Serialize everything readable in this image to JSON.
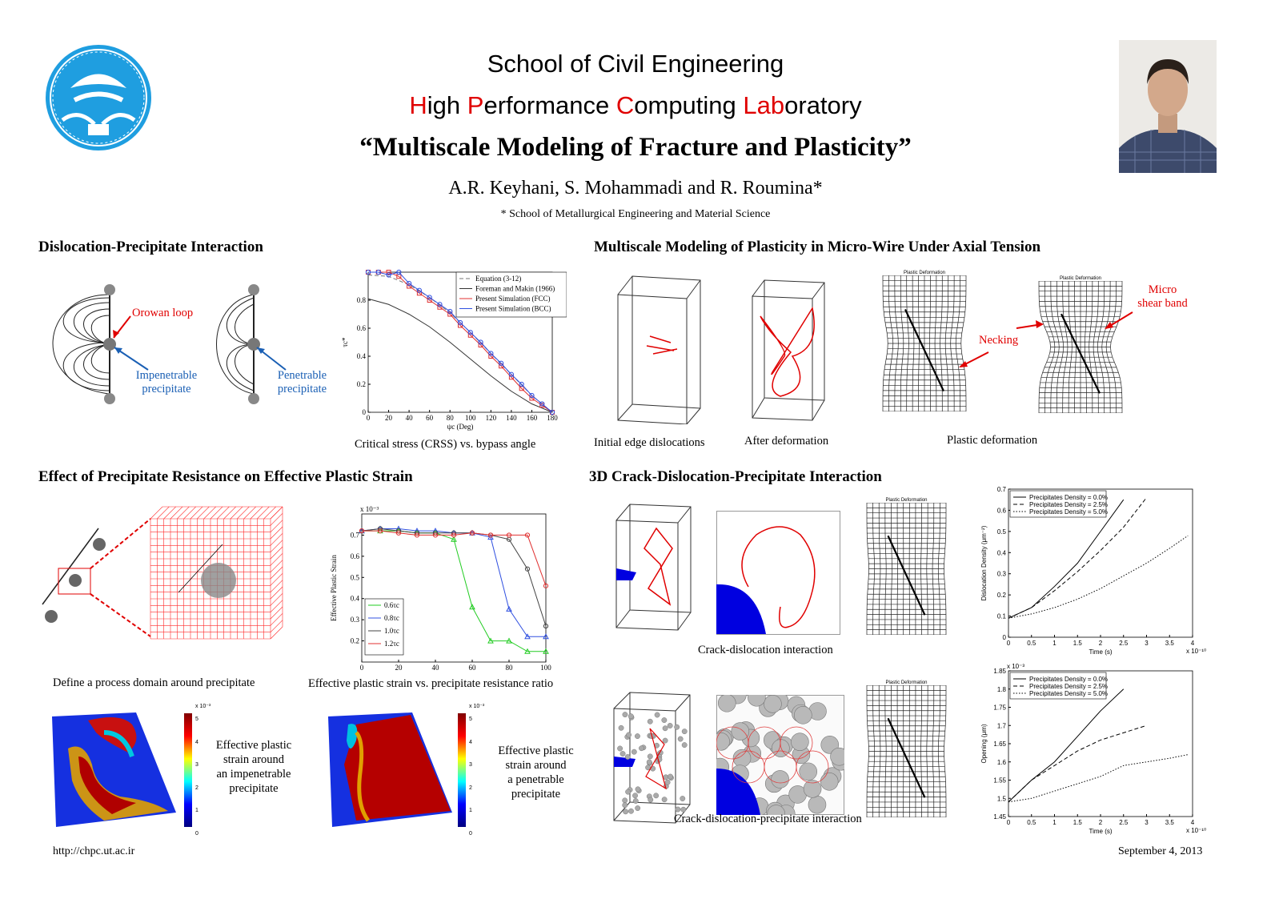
{
  "header": {
    "school": "School of Civil Engineering",
    "lab": [
      {
        "text": "H",
        "red": true
      },
      {
        "text": "igh ",
        "red": false
      },
      {
        "text": "P",
        "red": true
      },
      {
        "text": "erformance ",
        "red": false
      },
      {
        "text": "C",
        "red": true
      },
      {
        "text": "omputing ",
        "red": false
      },
      {
        "text": "Lab",
        "red": true
      },
      {
        "text": "oratory",
        "red": false
      }
    ],
    "title": "“Multiscale Modeling of Fracture and Plasticity”",
    "authors": "A.R. Keyhani, S. Mohammadi and R. Roumina*",
    "affiliation": "* School of Metallurgical Engineering and Material Science"
  },
  "sections": {
    "dislocation": {
      "title": "Dislocation-Precipitate Interaction",
      "orowan": "Orowan loop",
      "impenetrable": [
        "Impenetrable",
        "precipitate"
      ],
      "penetrable": [
        "Penetrable",
        "precipitate"
      ],
      "chart_caption": "Critical stress (CRSS) vs. bypass angle"
    },
    "microwire": {
      "title": "Multiscale Modeling of Plasticity in Micro-Wire Under Axial Tension",
      "cap_initial": "Initial edge dislocations",
      "cap_after": "After deformation",
      "cap_plastic": "Plastic deformation",
      "necking": "Necking",
      "micro_shear": [
        "Micro",
        "shear band"
      ],
      "mesh_title": "Plastic Deformation"
    },
    "effect": {
      "title": "Effect of Precipitate Resistance on Effective Plastic Strain",
      "cap_domain": "Define a process domain around precipitate",
      "cap_chart": "Effective plastic strain vs. precipitate resistance ratio",
      "map1_label": [
        "Effective plastic",
        "strain around",
        "an impenetrable",
        "precipitate"
      ],
      "map2_label": [
        "Effective plastic",
        "strain around",
        "a penetrable",
        "precipitate"
      ],
      "colorbar_ticks": [
        "5",
        "4",
        "3",
        "2",
        "1",
        "0"
      ],
      "colorbar_exp": "x 10⁻³"
    },
    "crack": {
      "title": "3D Crack-Dislocation-Precipitate Interaction",
      "cap_crack_disl": "Crack-dislocation interaction",
      "cap_crack_disl_prec": "Crack-dislocation-precipitate interaction",
      "mesh_title": "Plastic Deformation"
    }
  },
  "footer": {
    "url": "http://chpc.ut.ac.ir",
    "date": "September 4, 2013"
  },
  "colors": {
    "accent_red": "#e00000",
    "accent_blue": "#1a5fb4",
    "logo_blue": "#1f9ee0"
  },
  "chart_data": [
    {
      "type": "line",
      "title": "",
      "xlabel": "ψc (Deg)",
      "ylabel": "τc*",
      "xlim": [
        0,
        180
      ],
      "ylim": [
        0,
        1
      ],
      "xticks": [
        0,
        20,
        40,
        60,
        80,
        100,
        120,
        140,
        160,
        180
      ],
      "yticks": [
        0,
        0.2,
        0.4,
        0.6,
        0.8
      ],
      "legend": "top-right",
      "series": [
        {
          "name": "Equation (3-12)",
          "style": "dashed",
          "color": "#777777",
          "x": [
            0,
            20,
            40,
            60,
            80,
            100,
            120,
            140,
            160,
            180
          ],
          "y": [
            0.98,
            0.97,
            0.91,
            0.82,
            0.71,
            0.57,
            0.42,
            0.27,
            0.12,
            0.0
          ]
        },
        {
          "name": "Foreman and Makin (1966)",
          "style": "solid",
          "color": "#333333",
          "x": [
            0,
            20,
            40,
            60,
            80,
            100,
            120,
            140,
            160,
            180
          ],
          "y": [
            0.81,
            0.77,
            0.7,
            0.61,
            0.5,
            0.38,
            0.26,
            0.15,
            0.06,
            0.0
          ]
        },
        {
          "name": "Present Simulation (FCC)",
          "style": "marker-square",
          "color": "#e03030",
          "x": [
            0,
            10,
            20,
            30,
            40,
            50,
            60,
            70,
            80,
            90,
            100,
            110,
            120,
            130,
            140,
            150,
            160,
            170,
            180
          ],
          "y": [
            1.0,
            1.0,
            1.0,
            0.97,
            0.9,
            0.85,
            0.8,
            0.75,
            0.7,
            0.62,
            0.55,
            0.48,
            0.4,
            0.33,
            0.25,
            0.17,
            0.1,
            0.05,
            0.0
          ]
        },
        {
          "name": "Present Simulation (BCC)",
          "style": "marker-circle",
          "color": "#3050e0",
          "x": [
            0,
            10,
            20,
            30,
            40,
            50,
            60,
            70,
            80,
            90,
            100,
            110,
            120,
            130,
            140,
            150,
            160,
            170,
            180
          ],
          "y": [
            1.0,
            1.0,
            0.98,
            1.0,
            0.92,
            0.87,
            0.82,
            0.77,
            0.72,
            0.64,
            0.57,
            0.5,
            0.42,
            0.35,
            0.27,
            0.2,
            0.12,
            0.06,
            0.0
          ]
        }
      ]
    },
    {
      "type": "line",
      "title": "",
      "xlabel": "",
      "ylabel": "Effective Plastic Strain",
      "y_exponent": "x 10⁻³",
      "xlim": [
        0,
        100
      ],
      "ylim": [
        0.1,
        0.8
      ],
      "xticks": [
        0,
        20,
        40,
        60,
        80,
        100
      ],
      "yticks": [
        0.2,
        0.3,
        0.4,
        0.5,
        0.6,
        0.7
      ],
      "legend": "bottom-left",
      "series": [
        {
          "name": "0.6τc",
          "color": "#22cc22",
          "marker": "triangle",
          "x": [
            0,
            10,
            20,
            30,
            40,
            50,
            60,
            70,
            80,
            90,
            100
          ],
          "y": [
            0.72,
            0.72,
            0.72,
            0.71,
            0.71,
            0.68,
            0.36,
            0.2,
            0.2,
            0.15,
            0.15
          ]
        },
        {
          "name": "0.8τc",
          "color": "#3050e0",
          "marker": "triangle",
          "x": [
            0,
            10,
            20,
            30,
            40,
            50,
            60,
            70,
            80,
            90,
            100
          ],
          "y": [
            0.72,
            0.73,
            0.73,
            0.72,
            0.72,
            0.71,
            0.71,
            0.69,
            0.35,
            0.22,
            0.22
          ]
        },
        {
          "name": "1.0τc",
          "color": "#444444",
          "marker": "circle",
          "x": [
            0,
            10,
            20,
            30,
            40,
            50,
            60,
            70,
            80,
            90,
            100
          ],
          "y": [
            0.72,
            0.73,
            0.72,
            0.71,
            0.71,
            0.71,
            0.71,
            0.7,
            0.68,
            0.54,
            0.27
          ]
        },
        {
          "name": "1.2τc",
          "color": "#e03030",
          "marker": "circle",
          "x": [
            0,
            10,
            20,
            30,
            40,
            50,
            60,
            70,
            80,
            90,
            100
          ],
          "y": [
            0.72,
            0.72,
            0.71,
            0.7,
            0.7,
            0.7,
            0.71,
            0.7,
            0.7,
            0.7,
            0.46
          ]
        }
      ]
    },
    {
      "type": "line",
      "title": "",
      "xlabel": "Time (s)",
      "ylabel": "Dislocation Density (μm⁻²)",
      "x_exponent": "x 10⁻¹⁰",
      "xlim": [
        0,
        4
      ],
      "ylim": [
        0,
        0.7
      ],
      "xticks": [
        0,
        0.5,
        1,
        1.5,
        2,
        2.5,
        3,
        3.5,
        4
      ],
      "yticks": [
        0,
        0.1,
        0.2,
        0.3,
        0.4,
        0.5,
        0.6,
        0.7
      ],
      "legend": "top-left",
      "series": [
        {
          "name": "Precipitates Density = 0.0%",
          "style": "solid",
          "x": [
            0,
            0.5,
            1,
            1.5,
            2,
            2.5
          ],
          "y": [
            0.09,
            0.14,
            0.24,
            0.35,
            0.5,
            0.65
          ]
        },
        {
          "name": "Precipitates Density = 2.5%",
          "style": "dashed",
          "x": [
            0,
            0.5,
            1,
            1.5,
            2,
            2.5,
            3
          ],
          "y": [
            0.09,
            0.14,
            0.22,
            0.31,
            0.41,
            0.52,
            0.66
          ]
        },
        {
          "name": "Precipitates Density = 5.0%",
          "style": "dotted",
          "x": [
            0,
            0.5,
            1,
            1.5,
            2,
            2.5,
            3,
            3.5,
            3.9
          ],
          "y": [
            0.09,
            0.11,
            0.14,
            0.18,
            0.23,
            0.29,
            0.35,
            0.42,
            0.48
          ]
        }
      ]
    },
    {
      "type": "line",
      "title": "",
      "xlabel": "Time (s)",
      "ylabel": "Opening (μm)",
      "x_exponent": "x 10⁻¹⁰",
      "y_exponent": "x 10⁻³",
      "xlim": [
        0,
        4
      ],
      "ylim": [
        1.45,
        1.85
      ],
      "xticks": [
        0,
        0.5,
        1,
        1.5,
        2,
        2.5,
        3,
        3.5,
        4
      ],
      "yticks": [
        1.45,
        1.5,
        1.55,
        1.6,
        1.65,
        1.7,
        1.75,
        1.8,
        1.85
      ],
      "legend": "top-left",
      "series": [
        {
          "name": "Precipitates Density = 0.0%",
          "style": "solid",
          "x": [
            0,
            0.5,
            1,
            1.5,
            2,
            2.5
          ],
          "y": [
            1.49,
            1.55,
            1.6,
            1.67,
            1.74,
            1.8
          ]
        },
        {
          "name": "Precipitates Density = 2.5%",
          "style": "dashed",
          "x": [
            0,
            0.5,
            1,
            1.5,
            2,
            2.5,
            3
          ],
          "y": [
            1.49,
            1.55,
            1.59,
            1.63,
            1.66,
            1.68,
            1.7
          ]
        },
        {
          "name": "Precipitates Density = 5.0%",
          "style": "dotted",
          "x": [
            0,
            0.5,
            1,
            1.5,
            2,
            2.5,
            3,
            3.5,
            3.9
          ],
          "y": [
            1.49,
            1.5,
            1.52,
            1.54,
            1.56,
            1.59,
            1.6,
            1.61,
            1.62
          ]
        }
      ]
    }
  ]
}
